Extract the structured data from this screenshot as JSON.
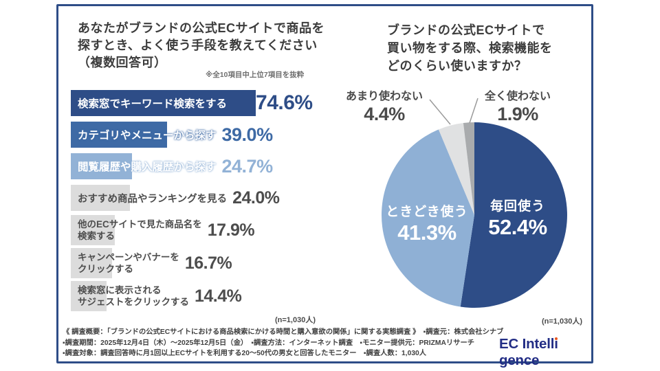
{
  "left_chart": {
    "title_lines": [
      "あなたがブランドの公式ECサイトで商品を",
      "探すとき、よく使う手段を教えてください",
      "（複数回答可）"
    ],
    "note": "※全10項目中上位7項目を抜粋",
    "n_label": "(n=1,030人)"
  },
  "right_chart": {
    "title_lines": [
      "ブランドの公式ECサイトで",
      "買い物をする際、検索機能を",
      "どのくらい使いますか？"
    ],
    "n_label": "(n=1,030人)"
  },
  "chart_data": [
    {
      "type": "bar",
      "orientation": "horizontal",
      "unit": "%",
      "xlim": [
        0,
        100
      ],
      "items": [
        {
          "label_lines": [
            "検索窓でキーワード検索をする"
          ],
          "value": 74.6,
          "display": "74.6%",
          "bar_color": "#2e4d87",
          "label_color": "#ffffff",
          "pct_color": "#2e4d87"
        },
        {
          "label_lines": [
            "カテゴリやメニューから探す"
          ],
          "value": 39.0,
          "display": "39.0%",
          "bar_color": "#3e6aa5",
          "label_color": "#ffffff",
          "pct_color": "#3e6aa5"
        },
        {
          "label_lines": [
            "閲覧履歴や購入履歴から探す"
          ],
          "value": 24.7,
          "display": "24.7%",
          "bar_color": "#92b2d6",
          "label_color": "#ffffff",
          "pct_color": "#92b2d6"
        },
        {
          "label_lines": [
            "おすすめ商品やランキングを見る"
          ],
          "value": 24.0,
          "display": "24.0%",
          "bar_color": "#dcdcdc",
          "label_color": "#4d4d4d",
          "pct_color": "#4d4d4d"
        },
        {
          "label_lines": [
            "他のECサイトで見た商品名を",
            "検索する"
          ],
          "value": 17.9,
          "display": "17.9%",
          "bar_color": "#dcdcdc",
          "label_color": "#4d4d4d",
          "pct_color": "#4d4d4d"
        },
        {
          "label_lines": [
            "キャンペーンやバナーを",
            "クリックする"
          ],
          "value": 16.7,
          "display": "16.7%",
          "bar_color": "#dcdcdc",
          "label_color": "#4d4d4d",
          "pct_color": "#4d4d4d"
        },
        {
          "label_lines": [
            "検索窓に表示される",
            "サジェストをクリックする"
          ],
          "value": 14.4,
          "display": "14.4%",
          "bar_color": "#dcdcdc",
          "label_color": "#4d4d4d",
          "pct_color": "#4d4d4d"
        }
      ],
      "n": "(n=1,030人)"
    },
    {
      "type": "pie",
      "start_angle_deg": 0,
      "direction": "clockwise",
      "slices": [
        {
          "label": "毎回使う",
          "value": 52.4,
          "display": "52.4%",
          "color": "#2e4d87",
          "label_placement": "inside"
        },
        {
          "label": "ときどき使う",
          "value": 41.3,
          "display": "41.3%",
          "color": "#8fb0d5",
          "label_placement": "inside"
        },
        {
          "label": "あまり使わない",
          "value": 4.4,
          "display": "4.4%",
          "color": "#e0e1e2",
          "label_placement": "callout"
        },
        {
          "label": "全く使わない",
          "value": 1.9,
          "display": "1.9%",
          "color": "#a9abad",
          "label_placement": "callout"
        }
      ],
      "n": "(n=1,030人)"
    }
  ],
  "footer": {
    "lines": [
      "《 調査概要：「ブランドの公式ECサイトにおける商品検索にかける時間と購入意欲の関係」に関する実態調査 》　▪調査元：株式会社シナブル",
      "▪調査期間：2025年12月4日（木）〜2025年12月5日（金）　▪調査方法：インターネット調査　▪モニター提供元：PRIZMAリサーチ",
      "▪調査対象：調査回答時に月1回以上ECサイトを利用する20〜50代の男女と回答したモニター　▪調査人数：1,030人"
    ]
  },
  "logo": {
    "pre": "EC Intell",
    "i": "ı",
    "post": "gence",
    "text_color": "#222d85",
    "dot_color": "#e8541f"
  }
}
